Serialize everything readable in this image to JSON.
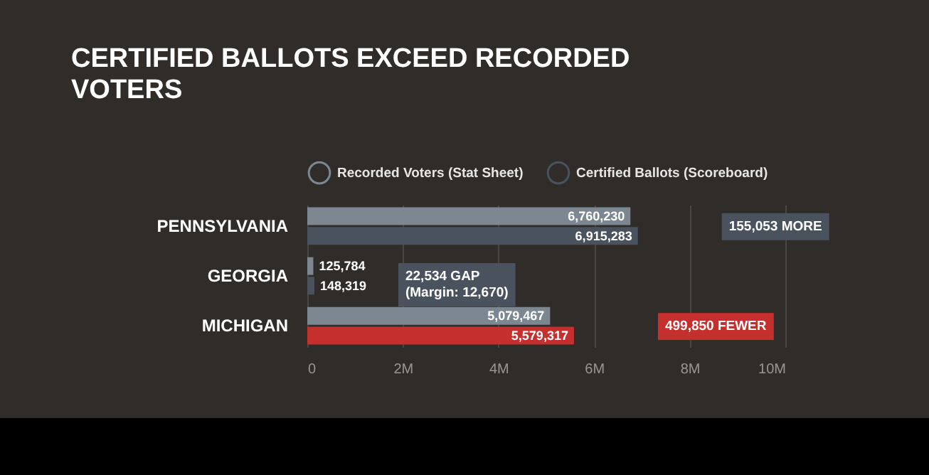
{
  "chart_data": {
    "type": "bar",
    "orientation": "horizontal",
    "title": "CERTIFIED BALLOTS EXCEED RECORDED VOTERS",
    "categories": [
      "PENNSYLVANIA",
      "GEORGIA",
      "MICHIGAN"
    ],
    "series": [
      {
        "name": "Recorded Voters (Stat Sheet)",
        "color": "#7d8791",
        "values": [
          6760230,
          125784,
          5079467
        ],
        "value_labels": [
          "6,760,230",
          "125,784",
          "5,079,467"
        ]
      },
      {
        "name": "Certified Ballots (Scoreboard)",
        "color": "#4a525d",
        "colors": [
          "#4a525d",
          "#4a525d",
          "#c5302f"
        ],
        "values": [
          6915283,
          148319,
          5579317
        ],
        "value_labels": [
          "6,915,283",
          "148,319",
          "5,579,317"
        ]
      }
    ],
    "xlim": [
      0,
      10000000
    ],
    "xticks": [
      {
        "value": 0,
        "label": "0"
      },
      {
        "value": 2000000,
        "label": "2M"
      },
      {
        "value": 4000000,
        "label": "4M"
      },
      {
        "value": 6000000,
        "label": "6M"
      },
      {
        "value": 8000000,
        "label": "8M"
      },
      {
        "value": 10000000,
        "label": "10M"
      }
    ],
    "grid": "x",
    "legend": "top",
    "annotations": [
      "155,053 MORE",
      "22,534 GAP\n(Margin: 12,670)",
      "499,850 FEWER"
    ]
  }
}
